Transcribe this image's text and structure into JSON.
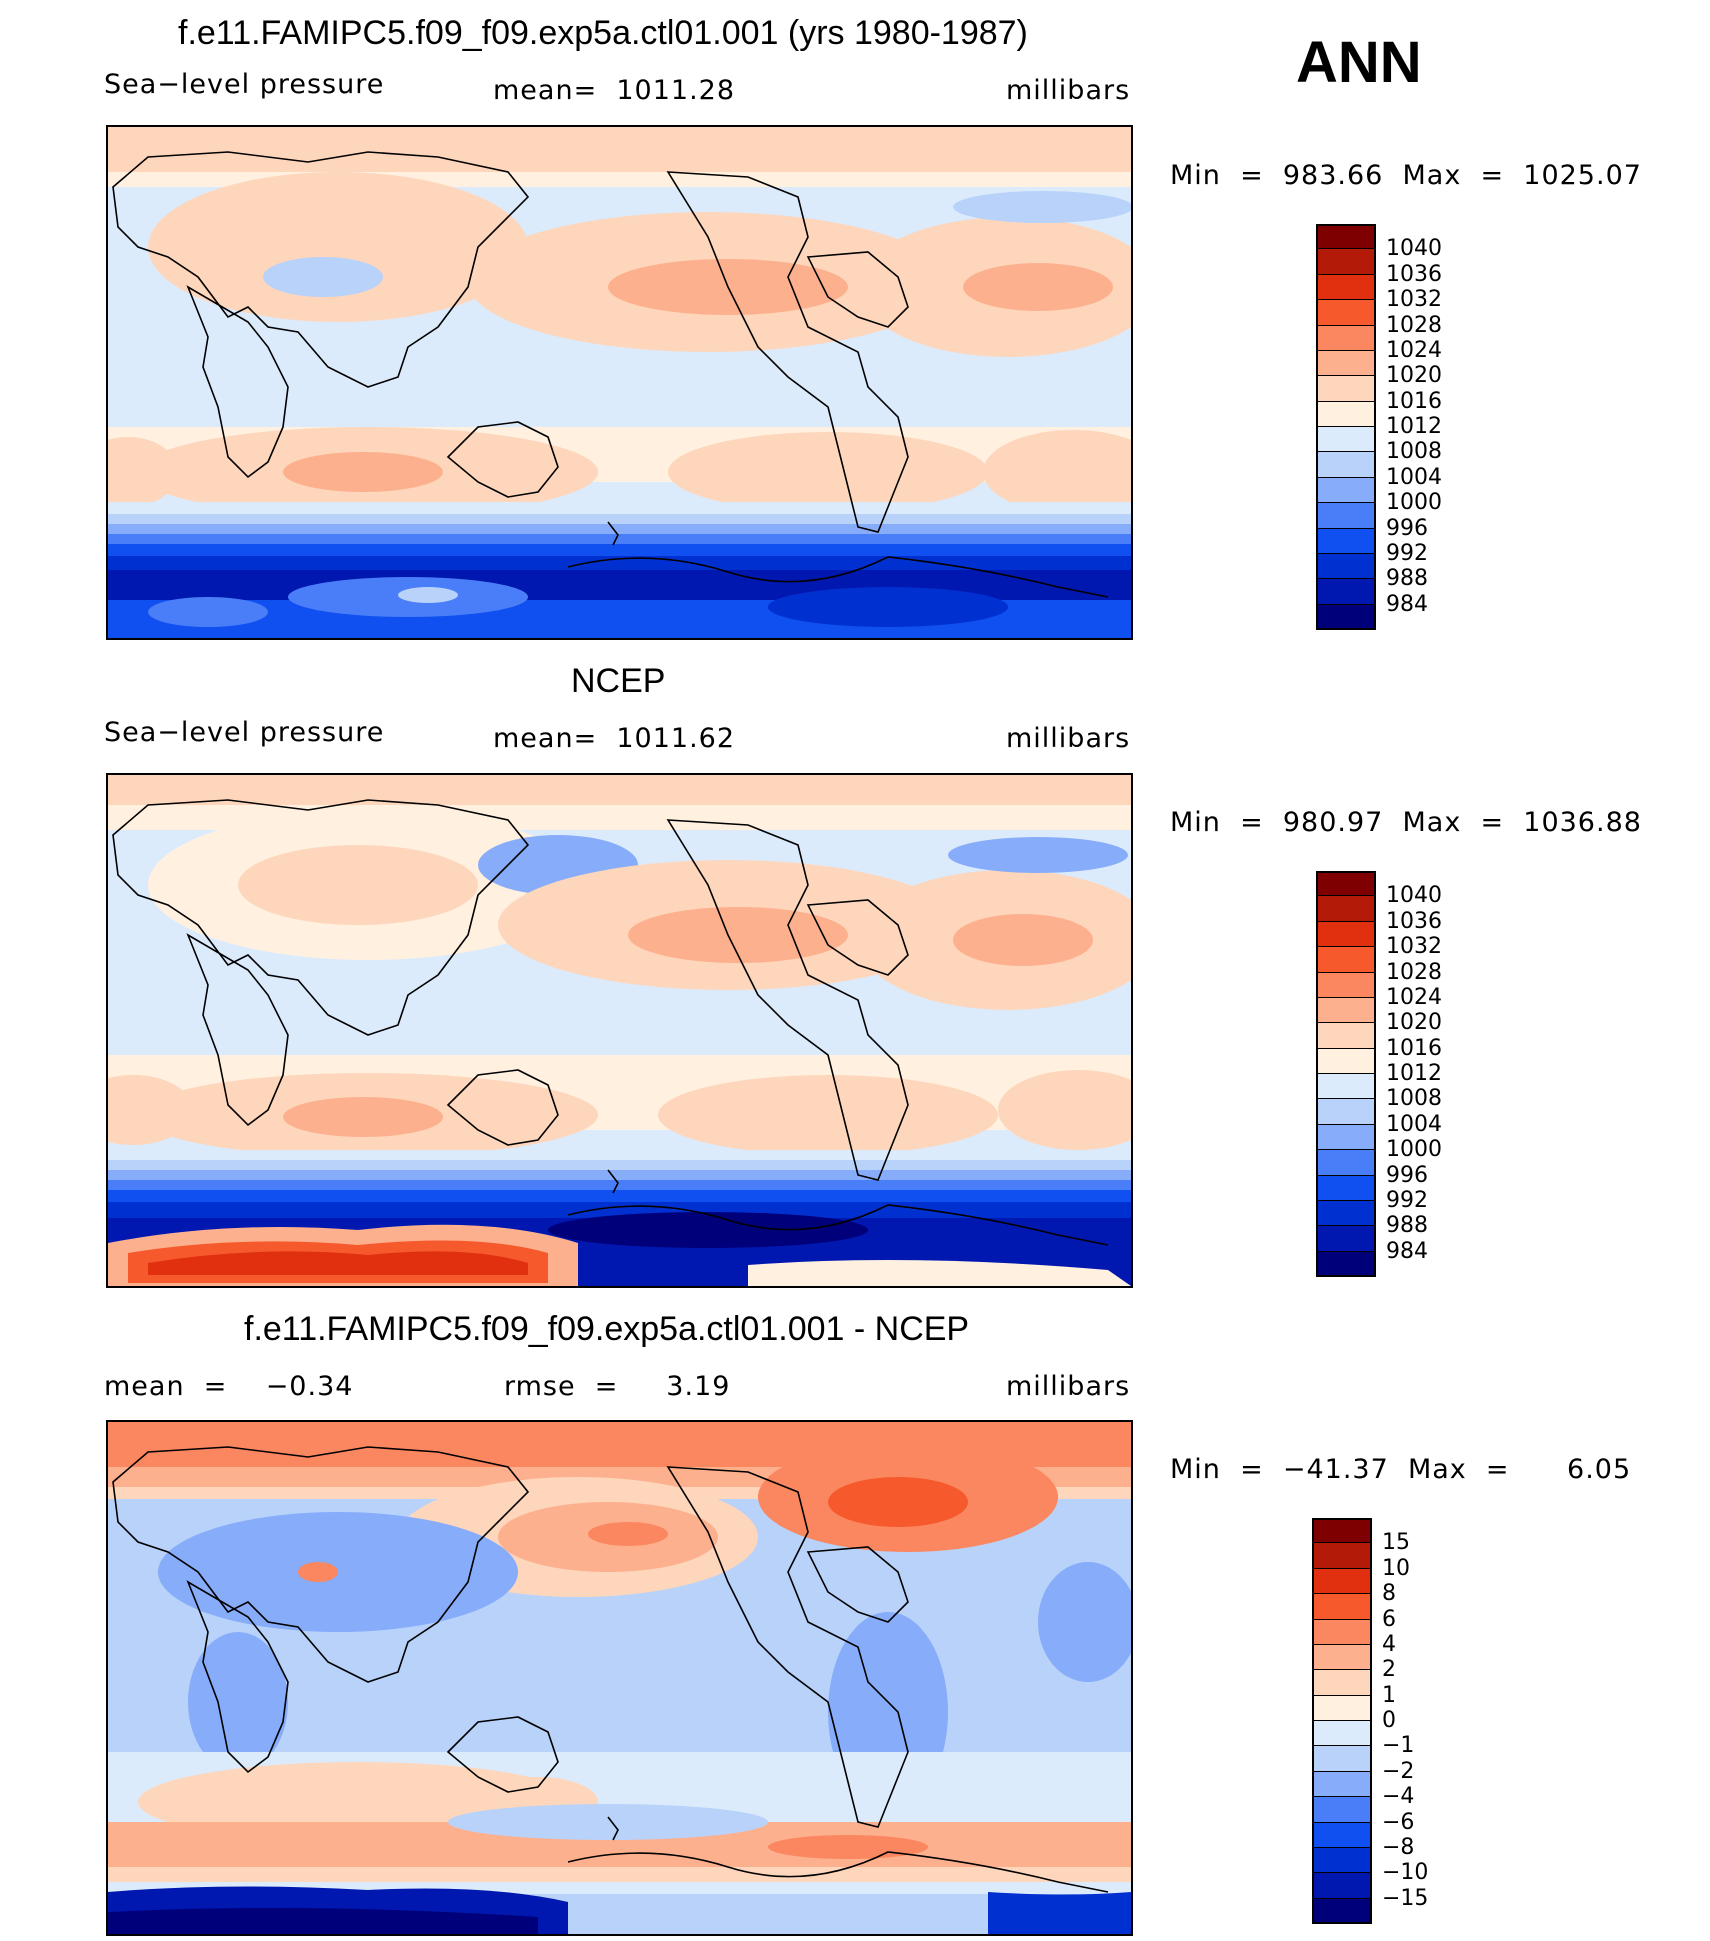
{
  "figure": {
    "season": "ANN"
  },
  "colors": {
    "slp": [
      "#00007a",
      "#0018b0",
      "#0030d0",
      "#1050f0",
      "#4a7ef8",
      "#86acfa",
      "#b8d2fa",
      "#dcebfc",
      "#fff0e0",
      "#fdd6bc",
      "#fdb08e",
      "#fb8760",
      "#f65a2c",
      "#e03010",
      "#b41a08",
      "#7e0000"
    ],
    "diff": [
      "#00007a",
      "#0018b0",
      "#0030d0",
      "#1050f0",
      "#4a7ef8",
      "#86acfa",
      "#b8d2fa",
      "#dcebfc",
      "#fff0e0",
      "#fdd6bc",
      "#fdb08e",
      "#fb8760",
      "#f65a2c",
      "#e03010",
      "#b41a08",
      "#7e0000"
    ]
  },
  "panels": [
    {
      "id": "model",
      "title": "f.e11.FAMIPC5.f09_f09.exp5a.ctl01.001 (yrs 1980-1987)",
      "left_label": "Sea−level pressure",
      "center_label": "mean=  1011.28",
      "right_label": "millibars",
      "minmax": "Min  =  983.66  Max  =  1025.07",
      "colorbar_levels": [
        "1040",
        "1036",
        "1032",
        "1028",
        "1024",
        "1020",
        "1016",
        "1012",
        "1008",
        "1004",
        "1000",
        "996",
        "992",
        "988",
        "984"
      ]
    },
    {
      "id": "obs",
      "title": "NCEP",
      "left_label": "Sea−level pressure",
      "center_label": "mean=  1011.62",
      "right_label": "millibars",
      "minmax": "Min  =  980.97  Max  =  1036.88",
      "colorbar_levels": [
        "1040",
        "1036",
        "1032",
        "1028",
        "1024",
        "1020",
        "1016",
        "1012",
        "1008",
        "1004",
        "1000",
        "996",
        "992",
        "988",
        "984"
      ]
    },
    {
      "id": "diff",
      "title": "f.e11.FAMIPC5.f09_f09.exp5a.ctl01.001 - NCEP",
      "left_label": "mean  =    −0.34",
      "center_label": "rmse  =     3.19",
      "right_label": "millibars",
      "minmax": "Min  =  −41.37  Max  =      6.05",
      "colorbar_levels": [
        "15",
        "10",
        "8",
        "6",
        "4",
        "2",
        "1",
        "0",
        "−1",
        "−2",
        "−4",
        "−6",
        "−8",
        "−10",
        "−15"
      ]
    }
  ],
  "chart_data": [
    {
      "type": "heatmap",
      "title": "f.e11.FAMIPC5.f09_f09.exp5a.ctl01.001 (yrs 1980-1987)",
      "variable": "Sea-level pressure",
      "units": "millibars",
      "mean": 1011.28,
      "min": 983.66,
      "max": 1025.07,
      "levels": [
        984,
        988,
        992,
        996,
        1000,
        1004,
        1008,
        1012,
        1016,
        1020,
        1024,
        1028,
        1032,
        1036,
        1040
      ],
      "projection": "cylindrical equidistant, centered 180"
    },
    {
      "type": "heatmap",
      "title": "NCEP",
      "variable": "Sea-level pressure",
      "units": "millibars",
      "mean": 1011.62,
      "min": 980.97,
      "max": 1036.88,
      "levels": [
        984,
        988,
        992,
        996,
        1000,
        1004,
        1008,
        1012,
        1016,
        1020,
        1024,
        1028,
        1032,
        1036,
        1040
      ],
      "projection": "cylindrical equidistant, centered 180"
    },
    {
      "type": "heatmap",
      "title": "f.e11.FAMIPC5.f09_f09.exp5a.ctl01.001 - NCEP",
      "units": "millibars",
      "mean": -0.34,
      "rmse": 3.19,
      "min": -41.37,
      "max": 6.05,
      "levels": [
        -15,
        -10,
        -8,
        -6,
        -4,
        -2,
        -1,
        0,
        1,
        2,
        4,
        6,
        8,
        10,
        15
      ]
    }
  ]
}
